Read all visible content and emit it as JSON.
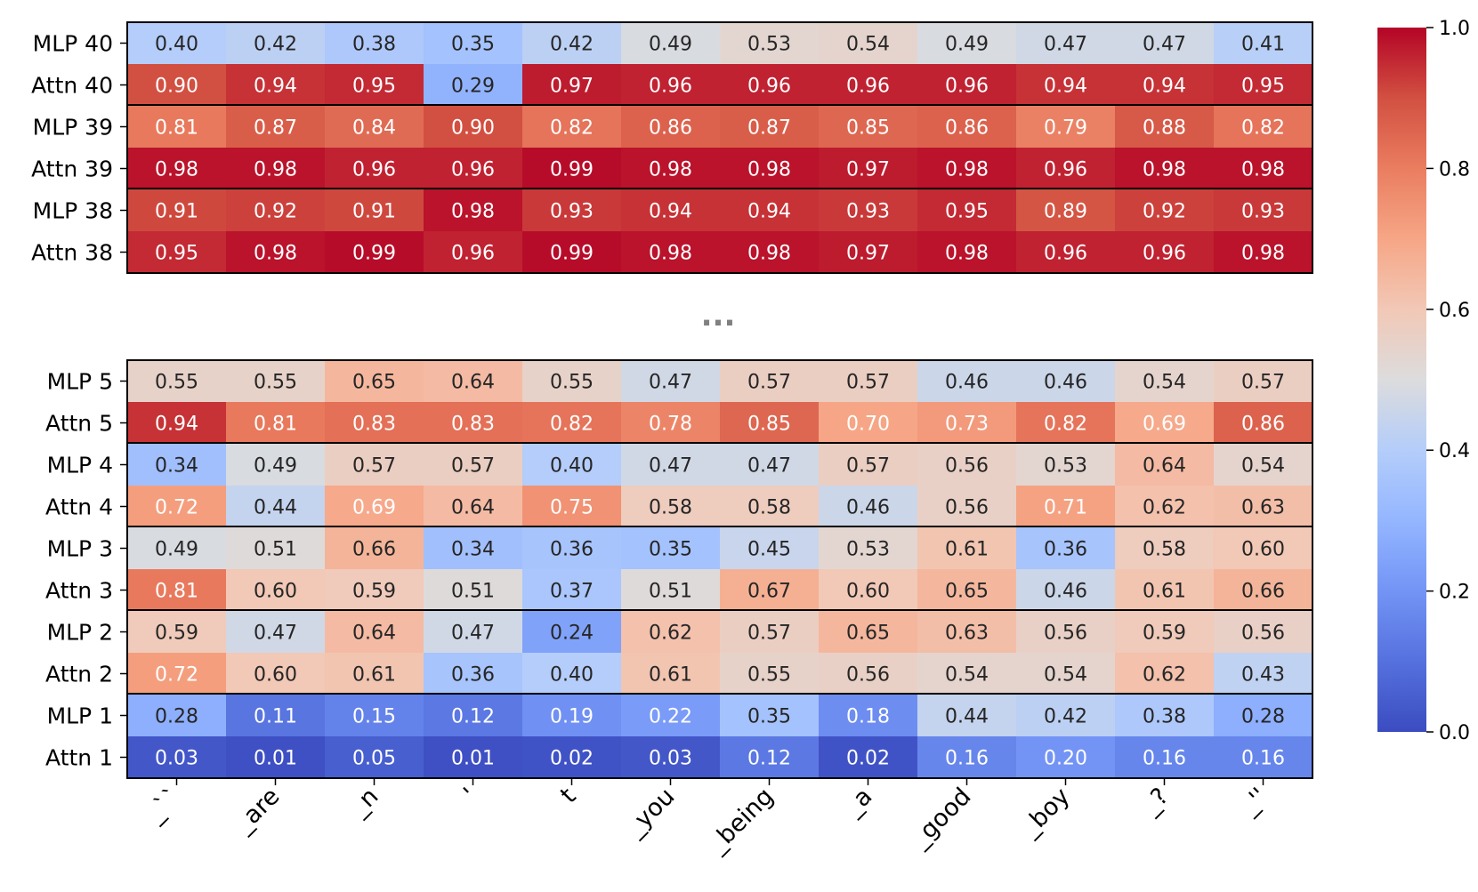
{
  "chart_data": {
    "type": "heatmap",
    "title": "",
    "xlabel": "",
    "ylabel": "",
    "x_tick_labels": [
      "_``",
      "_are",
      "_n",
      "'",
      "t",
      "_you",
      "_being",
      "_a",
      "_good",
      "_boy",
      "_?",
      "_''"
    ],
    "ellipsis": "...",
    "colormap": "coolwarm",
    "vmin": 0.0,
    "vmax": 1.0,
    "colorbar_ticks": [
      "0.0",
      "0.2",
      "0.4",
      "0.6",
      "0.8",
      "1.0"
    ],
    "panels": [
      {
        "rows": [
          {
            "label": "MLP 40",
            "values": [
              0.4,
              0.42,
              0.38,
              0.35,
              0.42,
              0.49,
              0.53,
              0.54,
              0.49,
              0.47,
              0.47,
              0.41
            ]
          },
          {
            "label": "Attn 40",
            "values": [
              0.9,
              0.94,
              0.95,
              0.29,
              0.97,
              0.96,
              0.96,
              0.96,
              0.96,
              0.94,
              0.94,
              0.95
            ]
          },
          {
            "label": "MLP 39",
            "values": [
              0.81,
              0.87,
              0.84,
              0.9,
              0.82,
              0.86,
              0.87,
              0.85,
              0.86,
              0.79,
              0.88,
              0.82
            ]
          },
          {
            "label": "Attn 39",
            "values": [
              0.98,
              0.98,
              0.96,
              0.96,
              0.99,
              0.98,
              0.98,
              0.97,
              0.98,
              0.96,
              0.98,
              0.98
            ]
          },
          {
            "label": "MLP 38",
            "values": [
              0.91,
              0.92,
              0.91,
              0.98,
              0.93,
              0.94,
              0.94,
              0.93,
              0.95,
              0.89,
              0.92,
              0.93
            ]
          },
          {
            "label": "Attn 38",
            "values": [
              0.95,
              0.98,
              0.99,
              0.96,
              0.99,
              0.98,
              0.98,
              0.97,
              0.98,
              0.96,
              0.96,
              0.98
            ]
          }
        ]
      },
      {
        "rows": [
          {
            "label": "MLP 5",
            "values": [
              0.55,
              0.55,
              0.65,
              0.64,
              0.55,
              0.47,
              0.57,
              0.57,
              0.46,
              0.46,
              0.54,
              0.57
            ]
          },
          {
            "label": "Attn 5",
            "values": [
              0.94,
              0.81,
              0.83,
              0.83,
              0.82,
              0.78,
              0.85,
              0.7,
              0.73,
              0.82,
              0.69,
              0.86
            ]
          },
          {
            "label": "MLP 4",
            "values": [
              0.34,
              0.49,
              0.57,
              0.57,
              0.4,
              0.47,
              0.47,
              0.57,
              0.56,
              0.53,
              0.64,
              0.54
            ]
          },
          {
            "label": "Attn 4",
            "values": [
              0.72,
              0.44,
              0.69,
              0.64,
              0.75,
              0.58,
              0.58,
              0.46,
              0.56,
              0.71,
              0.62,
              0.63
            ]
          },
          {
            "label": "MLP 3",
            "values": [
              0.49,
              0.51,
              0.66,
              0.34,
              0.36,
              0.35,
              0.45,
              0.53,
              0.61,
              0.36,
              0.58,
              0.6
            ]
          },
          {
            "label": "Attn 3",
            "values": [
              0.81,
              0.6,
              0.59,
              0.51,
              0.37,
              0.51,
              0.67,
              0.6,
              0.65,
              0.46,
              0.61,
              0.66
            ]
          },
          {
            "label": "MLP 2",
            "values": [
              0.59,
              0.47,
              0.64,
              0.47,
              0.24,
              0.62,
              0.57,
              0.65,
              0.63,
              0.56,
              0.59,
              0.56
            ]
          },
          {
            "label": "Attn 2",
            "values": [
              0.72,
              0.6,
              0.61,
              0.36,
              0.4,
              0.61,
              0.55,
              0.56,
              0.54,
              0.54,
              0.62,
              0.43
            ]
          },
          {
            "label": "MLP 1",
            "values": [
              0.28,
              0.11,
              0.15,
              0.12,
              0.19,
              0.22,
              0.35,
              0.18,
              0.44,
              0.42,
              0.38,
              0.28
            ]
          },
          {
            "label": "Attn 1",
            "values": [
              0.03,
              0.01,
              0.05,
              0.01,
              0.02,
              0.03,
              0.12,
              0.02,
              0.16,
              0.2,
              0.16,
              0.16
            ]
          }
        ]
      }
    ]
  }
}
